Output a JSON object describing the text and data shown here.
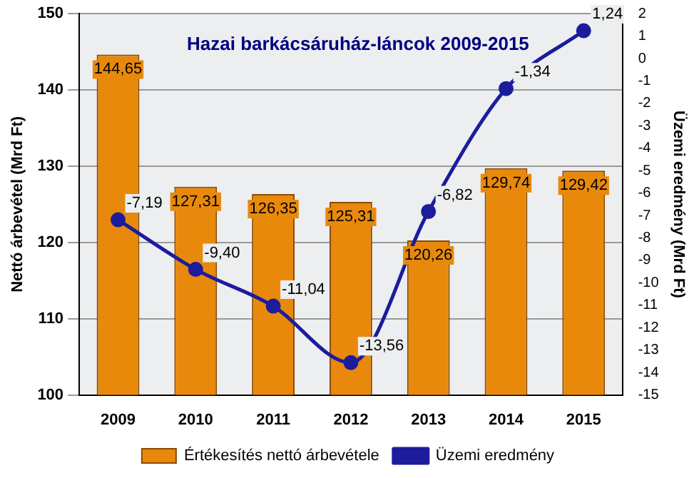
{
  "chart_data": {
    "type": "bar",
    "title": "Hazai barkácsáruház-láncok 2009-2015",
    "ylabel": "Nettó árbevétel (Mrd Ft)",
    "y2label": "Üzemi eredmény (Mrd Ft)",
    "categories": [
      "2009",
      "2010",
      "2011",
      "2012",
      "2013",
      "2014",
      "2015"
    ],
    "series": [
      {
        "name": "Értékesítés nettó árbevétele",
        "color": "#e8890c",
        "values": [
          144.65,
          127.31,
          126.35,
          125.31,
          120.26,
          129.74,
          129.42
        ],
        "value_labels": [
          "144,65",
          "127,31",
          "126,35",
          "125,31",
          "120,26",
          "129,74",
          "129,42"
        ]
      },
      {
        "name": "Üzemi eredmény",
        "type": "line",
        "axis": "y2",
        "color": "#1c1c9c",
        "values": [
          -7.19,
          -9.4,
          -11.04,
          -13.56,
          -6.82,
          -1.34,
          1.24
        ],
        "value_labels": [
          "-7,19",
          "-9,40",
          "-11,04",
          "-13,56",
          "-6,82",
          "-1,34",
          "1,24"
        ]
      }
    ],
    "ylim": [
      100,
      150
    ],
    "yticks": [
      100,
      110,
      120,
      130,
      140,
      150
    ],
    "y2lim": [
      -15,
      2
    ],
    "y2ticks": [
      -15,
      -14,
      -13,
      -12,
      -11,
      -10,
      -9,
      -8,
      -7,
      -6,
      -5,
      -4,
      -3,
      -2,
      -1,
      0,
      1,
      2
    ],
    "grid": "y",
    "legend": "bottom",
    "marker": "circle",
    "line_style": "solid"
  }
}
